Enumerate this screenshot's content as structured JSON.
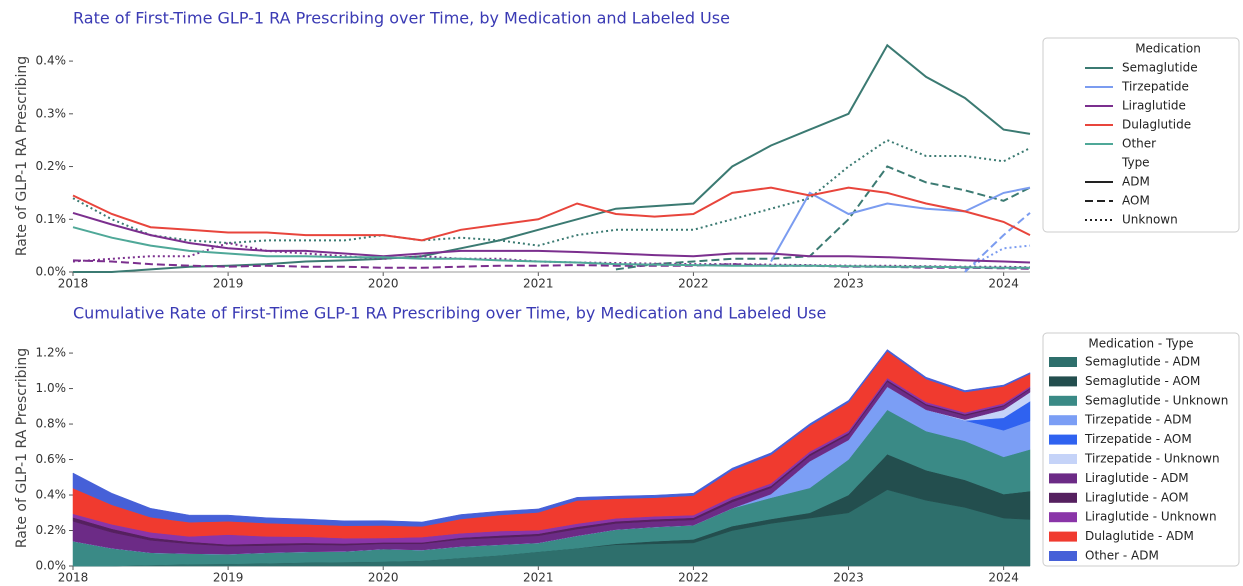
{
  "chart_data": [
    {
      "type": "line",
      "title": "Rate of First-Time GLP-1 RA Prescribing over Time, by Medication and Labeled Use",
      "y_label": "Rate of GLP-1 RA Prescribing",
      "x": [
        2018,
        2018.25,
        2018.5,
        2018.75,
        2019,
        2019.25,
        2019.5,
        2019.75,
        2020,
        2020.25,
        2020.5,
        2020.75,
        2021,
        2021.25,
        2021.5,
        2021.75,
        2022,
        2022.25,
        2022.5,
        2022.75,
        2023,
        2023.25,
        2023.5,
        2023.75,
        2024,
        2024.17
      ],
      "xlim": [
        2018,
        2024.17
      ],
      "xticks": [
        2018,
        2019,
        2020,
        2021,
        2022,
        2023,
        2024
      ],
      "ylim": [
        0,
        0.44
      ],
      "yticks": [
        {
          "value": 0,
          "label": "0.0%"
        },
        {
          "value": 0.1,
          "label": "0.1%"
        },
        {
          "value": 0.2,
          "label": "0.2%"
        },
        {
          "value": 0.3,
          "label": "0.3%"
        },
        {
          "value": 0.4,
          "label": "0.4%"
        }
      ],
      "legend_title": "Medication",
      "medications": [
        {
          "name": "Semaglutide",
          "color": "#3b7a72"
        },
        {
          "name": "Tirzepatide",
          "color": "#7b9cf0"
        },
        {
          "name": "Liraglutide",
          "color": "#7b2f8e"
        },
        {
          "name": "Dulaglutide",
          "color": "#e8453c"
        },
        {
          "name": "Other",
          "color": "#4fa898"
        }
      ],
      "type_title": "Type",
      "uses": [
        {
          "name": "ADM",
          "style": "solid"
        },
        {
          "name": "AOM",
          "style": "dashed"
        },
        {
          "name": "Unknown",
          "style": "dotted"
        }
      ],
      "series": [
        {
          "medication": "Semaglutide",
          "use": "ADM",
          "values": [
            0,
            0,
            0.005,
            0.01,
            0.012,
            0.015,
            0.02,
            0.022,
            0.025,
            0.03,
            0.045,
            0.06,
            0.08,
            0.1,
            0.12,
            0.125,
            0.13,
            0.2,
            0.24,
            0.27,
            0.3,
            0.43,
            0.37,
            0.33,
            0.27,
            0.262
          ]
        },
        {
          "medication": "Semaglutide",
          "use": "AOM",
          "values": [
            null,
            null,
            null,
            null,
            null,
            null,
            null,
            null,
            null,
            null,
            null,
            null,
            null,
            null,
            0.005,
            0.015,
            0.02,
            0.025,
            0.025,
            0.03,
            0.1,
            0.2,
            0.17,
            0.155,
            0.135,
            0.16
          ]
        },
        {
          "medication": "Semaglutide",
          "use": "Unknown",
          "values": [
            0.14,
            0.1,
            0.07,
            0.06,
            0.055,
            0.06,
            0.06,
            0.06,
            0.07,
            0.06,
            0.065,
            0.06,
            0.05,
            0.07,
            0.08,
            0.08,
            0.08,
            0.1,
            0.12,
            0.14,
            0.2,
            0.25,
            0.22,
            0.22,
            0.21,
            0.235
          ]
        },
        {
          "medication": "Tirzepatide",
          "use": "ADM",
          "values": [
            null,
            null,
            null,
            null,
            null,
            null,
            null,
            null,
            null,
            null,
            null,
            null,
            null,
            null,
            null,
            null,
            null,
            null,
            0.02,
            0.15,
            0.11,
            0.13,
            0.12,
            0.115,
            0.15,
            0.16
          ]
        },
        {
          "medication": "Tirzepatide",
          "use": "AOM",
          "values": [
            null,
            null,
            null,
            null,
            null,
            null,
            null,
            null,
            null,
            null,
            null,
            null,
            null,
            null,
            null,
            null,
            null,
            null,
            null,
            null,
            null,
            null,
            null,
            0,
            0.07,
            0.112
          ]
        },
        {
          "medication": "Tirzepatide",
          "use": "Unknown",
          "values": [
            null,
            null,
            null,
            null,
            null,
            null,
            null,
            null,
            null,
            null,
            null,
            null,
            null,
            null,
            null,
            null,
            null,
            null,
            null,
            null,
            null,
            null,
            null,
            0.005,
            0.045,
            0.05
          ]
        },
        {
          "medication": "Liraglutide",
          "use": "ADM",
          "values": [
            0.112,
            0.09,
            0.07,
            0.055,
            0.045,
            0.04,
            0.04,
            0.035,
            0.03,
            0.035,
            0.04,
            0.04,
            0.04,
            0.038,
            0.035,
            0.032,
            0.03,
            0.035,
            0.035,
            0.03,
            0.03,
            0.028,
            0.025,
            0.022,
            0.02,
            0.018
          ]
        },
        {
          "medication": "Liraglutide",
          "use": "AOM",
          "values": [
            0.022,
            0.02,
            0.015,
            0.012,
            0.01,
            0.012,
            0.01,
            0.01,
            0.008,
            0.008,
            0.01,
            0.012,
            0.012,
            0.013,
            0.012,
            0.012,
            0.012,
            0.015,
            0.012,
            0.012,
            0.01,
            0.01,
            0.008,
            0.008,
            0.007,
            0.006
          ]
        },
        {
          "medication": "Liraglutide",
          "use": "Unknown",
          "values": [
            0.02,
            0.025,
            0.03,
            0.03,
            0.055,
            0.04,
            0.035,
            0.03,
            0.025,
            0.03,
            0.025,
            0.025,
            0.02,
            0.018,
            0.017,
            0.016,
            0.015,
            0.015,
            0.014,
            0.013,
            0.012,
            0.012,
            0.011,
            0.01,
            0.01,
            0.009
          ]
        },
        {
          "medication": "Dulaglutide",
          "use": "ADM",
          "values": [
            0.145,
            0.11,
            0.085,
            0.08,
            0.075,
            0.075,
            0.07,
            0.07,
            0.07,
            0.06,
            0.08,
            0.09,
            0.1,
            0.13,
            0.11,
            0.105,
            0.11,
            0.15,
            0.16,
            0.145,
            0.16,
            0.15,
            0.13,
            0.115,
            0.095,
            0.07
          ]
        },
        {
          "medication": "Other",
          "use": "ADM",
          "values": [
            0.085,
            0.065,
            0.05,
            0.04,
            0.035,
            0.03,
            0.03,
            0.028,
            0.028,
            0.025,
            0.025,
            0.022,
            0.02,
            0.018,
            0.015,
            0.014,
            0.013,
            0.012,
            0.012,
            0.012,
            0.011,
            0.01,
            0.01,
            0.009,
            0.008,
            0.008
          ]
        }
      ]
    },
    {
      "type": "stacked_area",
      "title": "Cumulative Rate of First-Time GLP-1 RA Prescribing over Time, by Medication and Labeled Use",
      "y_label": "Rate of GLP-1 RA Prescribing",
      "x": [
        2018,
        2018.25,
        2018.5,
        2018.75,
        2019,
        2019.25,
        2019.5,
        2019.75,
        2020,
        2020.25,
        2020.5,
        2020.75,
        2021,
        2021.25,
        2021.5,
        2021.75,
        2022,
        2022.25,
        2022.5,
        2022.75,
        2023,
        2023.25,
        2023.5,
        2023.75,
        2024,
        2024.17
      ],
      "xlim": [
        2018,
        2024.17
      ],
      "xticks": [
        2018,
        2019,
        2020,
        2021,
        2022,
        2023,
        2024
      ],
      "ylim": [
        0,
        1.33
      ],
      "yticks": [
        {
          "value": 0,
          "label": "0.0%"
        },
        {
          "value": 0.2,
          "label": "0.2%"
        },
        {
          "value": 0.4,
          "label": "0.4%"
        },
        {
          "value": 0.6,
          "label": "0.6%"
        },
        {
          "value": 0.8,
          "label": "0.8%"
        },
        {
          "value": 1.0,
          "label": "1.0%"
        },
        {
          "value": 1.2,
          "label": "1.2%"
        }
      ],
      "legend_title": "Medication - Type",
      "series": [
        {
          "name": "Semaglutide - ADM",
          "color": "#2e6f6c",
          "values": [
            0,
            0,
            0.005,
            0.01,
            0.012,
            0.015,
            0.02,
            0.022,
            0.025,
            0.03,
            0.045,
            0.06,
            0.08,
            0.1,
            0.12,
            0.125,
            0.13,
            0.2,
            0.24,
            0.27,
            0.3,
            0.43,
            0.37,
            0.33,
            0.27,
            0.262
          ]
        },
        {
          "name": "Semaglutide - AOM",
          "color": "#234e4e",
          "values": [
            null,
            null,
            null,
            null,
            null,
            null,
            null,
            null,
            null,
            null,
            null,
            null,
            null,
            null,
            0.005,
            0.015,
            0.02,
            0.025,
            0.025,
            0.03,
            0.1,
            0.2,
            0.17,
            0.155,
            0.135,
            0.16
          ]
        },
        {
          "name": "Semaglutide - Unknown",
          "color": "#3a8a86",
          "values": [
            0.14,
            0.1,
            0.07,
            0.06,
            0.055,
            0.06,
            0.06,
            0.06,
            0.07,
            0.06,
            0.065,
            0.06,
            0.05,
            0.07,
            0.08,
            0.08,
            0.08,
            0.1,
            0.12,
            0.14,
            0.2,
            0.25,
            0.22,
            0.22,
            0.21,
            0.235
          ]
        },
        {
          "name": "Tirzepatide - ADM",
          "color": "#7b9ef5",
          "values": [
            null,
            null,
            null,
            null,
            null,
            null,
            null,
            null,
            null,
            null,
            null,
            null,
            null,
            null,
            null,
            null,
            null,
            null,
            0.02,
            0.15,
            0.11,
            0.13,
            0.12,
            0.115,
            0.15,
            0.16
          ]
        },
        {
          "name": "Tirzepatide - AOM",
          "color": "#2f62f0",
          "values": [
            null,
            null,
            null,
            null,
            null,
            null,
            null,
            null,
            null,
            null,
            null,
            null,
            null,
            null,
            null,
            null,
            null,
            null,
            null,
            null,
            null,
            null,
            null,
            0,
            0.07,
            0.112
          ]
        },
        {
          "name": "Tirzepatide - Unknown",
          "color": "#c5d3f8",
          "values": [
            null,
            null,
            null,
            null,
            null,
            null,
            null,
            null,
            null,
            null,
            null,
            null,
            null,
            null,
            null,
            null,
            null,
            null,
            null,
            null,
            null,
            null,
            null,
            0.005,
            0.045,
            0.05
          ]
        },
        {
          "name": "Liraglutide - ADM",
          "color": "#6c2b86",
          "values": [
            0.112,
            0.09,
            0.07,
            0.055,
            0.045,
            0.04,
            0.04,
            0.035,
            0.03,
            0.035,
            0.04,
            0.04,
            0.04,
            0.038,
            0.035,
            0.032,
            0.03,
            0.035,
            0.035,
            0.03,
            0.03,
            0.028,
            0.025,
            0.022,
            0.02,
            0.018
          ]
        },
        {
          "name": "Liraglutide - AOM",
          "color": "#55205f",
          "values": [
            0.022,
            0.02,
            0.015,
            0.012,
            0.01,
            0.012,
            0.01,
            0.01,
            0.008,
            0.008,
            0.01,
            0.012,
            0.012,
            0.013,
            0.012,
            0.012,
            0.012,
            0.015,
            0.012,
            0.012,
            0.01,
            0.01,
            0.008,
            0.008,
            0.007,
            0.006
          ]
        },
        {
          "name": "Liraglutide - Unknown",
          "color": "#8a35a8",
          "values": [
            0.02,
            0.025,
            0.03,
            0.03,
            0.055,
            0.04,
            0.035,
            0.03,
            0.025,
            0.03,
            0.025,
            0.025,
            0.02,
            0.018,
            0.017,
            0.016,
            0.015,
            0.015,
            0.014,
            0.013,
            0.012,
            0.012,
            0.011,
            0.01,
            0.01,
            0.009
          ]
        },
        {
          "name": "Dulaglutide - ADM",
          "color": "#f03a2f",
          "values": [
            0.145,
            0.11,
            0.085,
            0.08,
            0.075,
            0.075,
            0.07,
            0.07,
            0.07,
            0.06,
            0.08,
            0.09,
            0.1,
            0.13,
            0.11,
            0.105,
            0.11,
            0.15,
            0.16,
            0.145,
            0.16,
            0.15,
            0.13,
            0.115,
            0.095,
            0.07
          ]
        },
        {
          "name": "Other - ADM",
          "color": "#4660d8",
          "values": [
            0.085,
            0.065,
            0.05,
            0.04,
            0.035,
            0.03,
            0.03,
            0.028,
            0.028,
            0.025,
            0.025,
            0.022,
            0.02,
            0.018,
            0.015,
            0.014,
            0.013,
            0.012,
            0.012,
            0.012,
            0.011,
            0.01,
            0.01,
            0.009,
            0.008,
            0.008
          ]
        }
      ]
    }
  ]
}
